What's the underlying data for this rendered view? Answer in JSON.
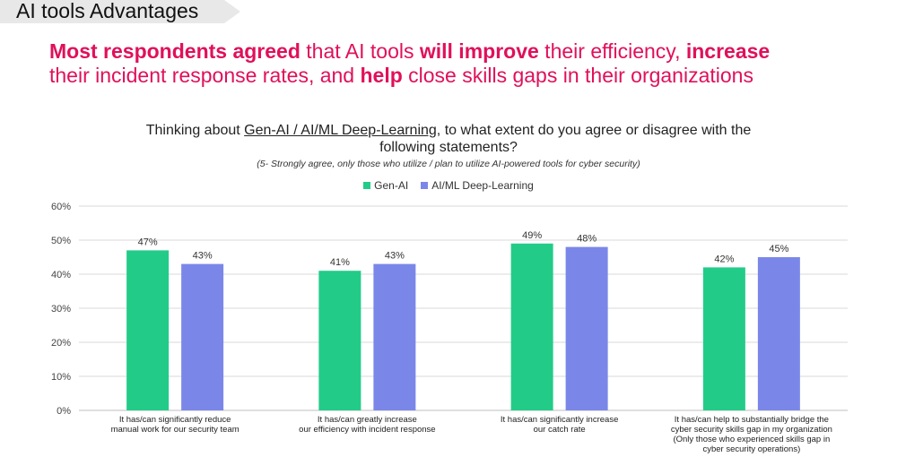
{
  "slide": {
    "title": "AI tools Advantages",
    "headline_line1": [
      {
        "text": "Most respondents agreed",
        "bold": true
      },
      {
        "text": " that AI tools ",
        "bold": false
      },
      {
        "text": "will improve",
        "bold": true
      },
      {
        "text": " their efficiency, ",
        "bold": false
      },
      {
        "text": "increase",
        "bold": true
      }
    ],
    "headline_line2": [
      {
        "text": "their incident response rates, and ",
        "bold": false
      },
      {
        "text": "help",
        "bold": true
      },
      {
        "text": " close skills gaps in their organizations",
        "bold": false
      }
    ],
    "accent_color": "#e0105a"
  },
  "chart_data": {
    "type": "bar",
    "title_pre": "Thinking about ",
    "title_underlined": "Gen-AI / AI/ML Deep-Learning",
    "title_post": ", to what extent do you agree or disagree with the",
    "title_line2": "following statements?",
    "subtitle": "(5- Strongly agree, only those who utilize / plan to utilize AI-powered tools for cyber security)",
    "categories": [
      [
        "It has/can significantly reduce",
        "manual work for our security team"
      ],
      [
        "It has/can greatly increase",
        "our efficiency with incident response"
      ],
      [
        "It has/can significantly increase",
        "our catch rate"
      ],
      [
        "It has/can help to substantially bridge the",
        "cyber security skills gap in my organization",
        "(Only those who experienced skills gap in",
        "cyber security operations)"
      ]
    ],
    "series": [
      {
        "name": "Gen-AI",
        "color": "#22cc88",
        "values": [
          47,
          41,
          49,
          42
        ]
      },
      {
        "name": "AI/ML Deep-Learning",
        "color": "#7b87e8",
        "values": [
          43,
          43,
          48,
          45
        ]
      }
    ],
    "ylim": [
      0,
      60
    ],
    "yticks": [
      "0%",
      "10%",
      "20%",
      "30%",
      "40%",
      "50%",
      "60%"
    ],
    "ytick_values": [
      0,
      10,
      20,
      30,
      40,
      50,
      60
    ],
    "value_suffix": "%",
    "grid": true,
    "legend": "top-center"
  }
}
